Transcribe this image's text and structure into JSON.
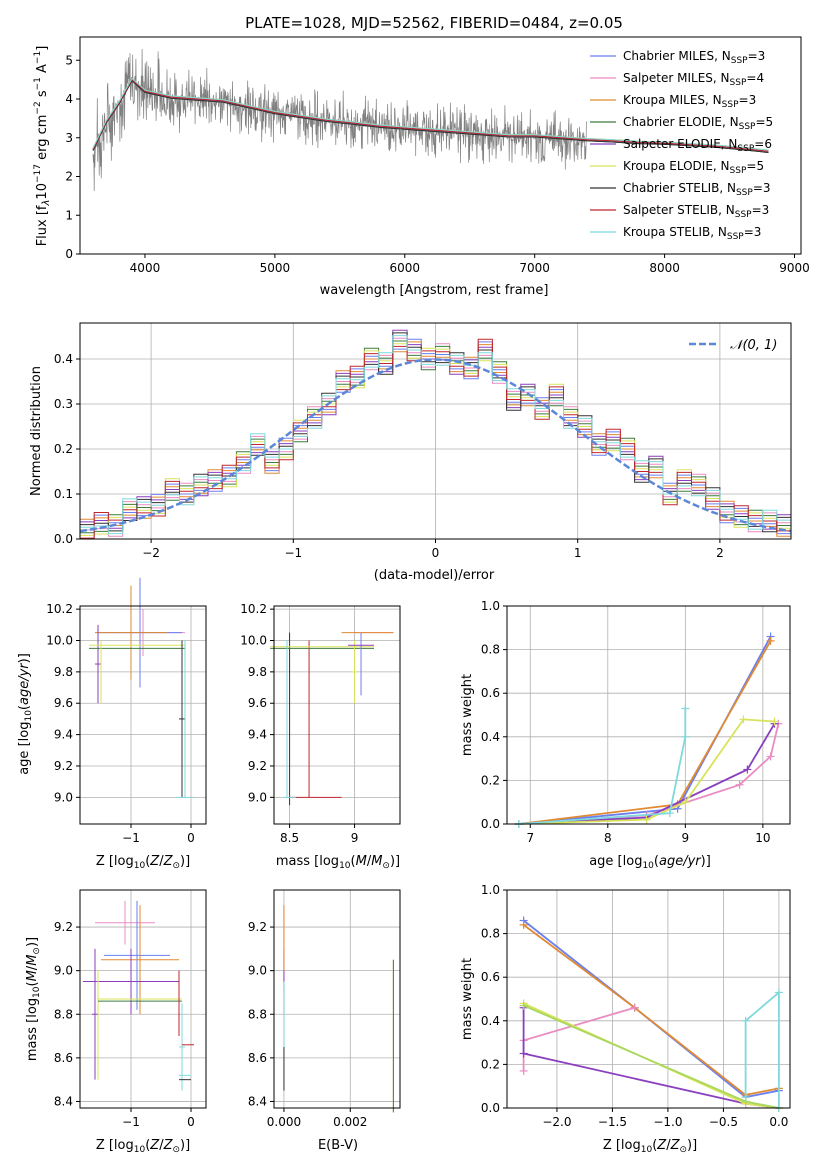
{
  "chart_data": [
    {
      "id": "spectrum",
      "type": "line",
      "title": "PLATE=1028, MJD=52562, FIBERID=0484, z=0.05",
      "xlabel": "wavelength [Angstrom, rest frame]",
      "ylabel": "Flux [f_λ 10^-17 erg cm^-2 s^-1 A^-1]",
      "xlim": [
        3500,
        9050
      ],
      "ylim": [
        0,
        5.6
      ],
      "xticks": [
        4000,
        5000,
        6000,
        7000,
        8000,
        9000
      ],
      "yticks": [
        0,
        1,
        2,
        3,
        4,
        5
      ],
      "legend_position": "top-right",
      "grid": false,
      "data_trace": {
        "color": "#808080",
        "x": [
          3600,
          3700,
          3800,
          3900,
          4000,
          4200,
          4400,
          4600,
          4800,
          5000,
          5200,
          5400,
          5600,
          5800,
          6000,
          6200,
          6400,
          6600,
          6800,
          7000,
          7200,
          7400
        ],
        "y": [
          2.6,
          3.3,
          3.9,
          4.5,
          4.2,
          4.0,
          4.0,
          3.9,
          3.75,
          3.6,
          3.55,
          3.45,
          3.35,
          3.3,
          3.25,
          3.2,
          3.15,
          3.1,
          3.05,
          3.0,
          2.95,
          2.9
        ]
      },
      "model": {
        "x": [
          3600,
          3700,
          3800,
          3900,
          4000,
          4200,
          4400,
          4600,
          4800,
          5000,
          5200,
          5400,
          5600,
          5800,
          6000,
          6200,
          6400,
          6600,
          6800,
          7000,
          7200,
          7400,
          7600,
          7800,
          8000,
          8200,
          8400,
          8600,
          8800
        ],
        "y": [
          2.7,
          3.4,
          3.9,
          4.5,
          4.2,
          4.05,
          4.0,
          3.95,
          3.8,
          3.65,
          3.55,
          3.45,
          3.38,
          3.3,
          3.25,
          3.2,
          3.15,
          3.1,
          3.05,
          3.05,
          3.0,
          2.95,
          2.92,
          2.88,
          2.86,
          2.82,
          2.78,
          2.72,
          2.65
        ]
      },
      "series": [
        {
          "name": "Chabrier MILES, N_SSP=3",
          "color": "#6a7ff0"
        },
        {
          "name": "Salpeter MILES, N_SSP=4",
          "color": "#ea8cc2"
        },
        {
          "name": "Kroupa MILES, N_SSP=3",
          "color": "#e08a33"
        },
        {
          "name": "Chabrier ELODIE, N_SSP=5",
          "color": "#3d7d3d"
        },
        {
          "name": "Salpeter ELODIE, N_SSP=6",
          "color": "#8a3fbf"
        },
        {
          "name": "Kroupa ELODIE, N_SSP=5",
          "color": "#d9e35a"
        },
        {
          "name": "Chabrier STELIB, N_SSP=3",
          "color": "#333333"
        },
        {
          "name": "Salpeter STELIB, N_SSP=3",
          "color": "#c0272d"
        },
        {
          "name": "Kroupa STELIB, N_SSP=3",
          "color": "#7fd8dd"
        }
      ]
    },
    {
      "id": "residuals",
      "type": "histogram",
      "xlabel": "(data-model)/error",
      "ylabel": "Normed distribution",
      "xlim": [
        -2.5,
        2.5
      ],
      "ylim": [
        0,
        0.48
      ],
      "xticks": [
        -2,
        -1,
        0,
        1,
        2
      ],
      "yticks": [
        0.0,
        0.1,
        0.2,
        0.3,
        0.4
      ],
      "grid": true,
      "legend_position": "top-right",
      "normal_label": "𝒩(0, 1)",
      "normal_color": "#5b87d9",
      "bins": [
        -2.5,
        -2.4,
        -2.3,
        -2.2,
        -2.1,
        -2.0,
        -1.9,
        -1.8,
        -1.7,
        -1.6,
        -1.5,
        -1.4,
        -1.3,
        -1.2,
        -1.1,
        -1.0,
        -0.9,
        -0.8,
        -0.7,
        -0.6,
        -0.5,
        -0.4,
        -0.3,
        -0.2,
        -0.1,
        0.0,
        0.1,
        0.2,
        0.3,
        0.4,
        0.5,
        0.6,
        0.7,
        0.8,
        0.9,
        1.0,
        1.1,
        1.2,
        1.3,
        1.4,
        1.5,
        1.6,
        1.7,
        1.8,
        1.9,
        2.0,
        2.1,
        2.2,
        2.3,
        2.4
      ],
      "heights": [
        0.02,
        0.035,
        0.03,
        0.065,
        0.07,
        0.075,
        0.11,
        0.1,
        0.12,
        0.13,
        0.14,
        0.17,
        0.21,
        0.17,
        0.2,
        0.24,
        0.27,
        0.3,
        0.35,
        0.36,
        0.4,
        0.39,
        0.44,
        0.42,
        0.4,
        0.41,
        0.39,
        0.38,
        0.42,
        0.37,
        0.31,
        0.32,
        0.29,
        0.32,
        0.27,
        0.25,
        0.21,
        0.22,
        0.2,
        0.15,
        0.16,
        0.1,
        0.13,
        0.12,
        0.09,
        0.06,
        0.05,
        0.04,
        0.04,
        0.03
      ]
    },
    {
      "id": "age-vs-Z",
      "type": "errorbar",
      "xlabel": "Z [log10(Z/Z⊙)]",
      "ylabel": "age [log10(age/yr)]",
      "xlim": [
        -1.85,
        0.25
      ],
      "ylim": [
        8.83,
        10.22
      ],
      "xticks": [
        -1,
        0
      ],
      "xticklabels": [
        "−1",
        "0"
      ],
      "yticks": [
        9.0,
        9.2,
        9.4,
        9.6,
        9.8,
        10.0,
        10.2
      ],
      "grid": true
    },
    {
      "id": "age-vs-mass",
      "type": "errorbar",
      "xlabel": "mass [log10(M/M⊙)]",
      "ylabel": "",
      "xlim": [
        8.38,
        9.35
      ],
      "ylim": [
        8.83,
        10.22
      ],
      "xticks": [
        8.5,
        9.0
      ],
      "yticks": [
        9.0,
        9.2,
        9.4,
        9.6,
        9.8,
        10.0,
        10.2
      ],
      "grid": true
    },
    {
      "id": "weight-vs-age",
      "type": "line",
      "xlabel": "age [log10(age/yr)]",
      "ylabel": "mass weight",
      "xlim": [
        6.7,
        10.35
      ],
      "ylim": [
        0,
        1.0
      ],
      "xticks": [
        7,
        8,
        9,
        10
      ],
      "yticks": [
        0.0,
        0.2,
        0.4,
        0.6,
        0.8,
        1.0
      ],
      "grid": true,
      "series": [
        {
          "color": "#6a7ff0",
          "x": [
            6.85,
            8.9,
            10.1
          ],
          "y": [
            0.0,
            0.07,
            0.86
          ]
        },
        {
          "color": "#e08a33",
          "x": [
            6.85,
            8.9,
            10.1
          ],
          "y": [
            0.0,
            0.09,
            0.84
          ]
        },
        {
          "color": "#ea8cc2",
          "x": [
            6.85,
            8.5,
            9.7,
            10.1,
            10.2
          ],
          "y": [
            0.0,
            0.04,
            0.18,
            0.31,
            0.46
          ]
        },
        {
          "color": "#8a3fbf",
          "x": [
            6.85,
            8.5,
            9.8,
            10.15
          ],
          "y": [
            0.0,
            0.03,
            0.25,
            0.46
          ]
        },
        {
          "color": "#d9e35a",
          "x": [
            6.85,
            8.5,
            9.0,
            9.75,
            10.15
          ],
          "y": [
            0.0,
            0.02,
            0.1,
            0.48,
            0.47
          ]
        },
        {
          "color": "#7fd8dd",
          "x": [
            6.85,
            8.8,
            9.0,
            9.0
          ],
          "y": [
            0.0,
            0.05,
            0.4,
            0.53
          ]
        }
      ]
    },
    {
      "id": "mass-vs-Z",
      "type": "errorbar",
      "xlabel": "Z [log10(Z/Z⊙)]",
      "ylabel": "mass [log10(M/M⊙)]",
      "xlim": [
        -1.85,
        0.25
      ],
      "ylim": [
        8.37,
        9.37
      ],
      "xticks": [
        -1,
        0
      ],
      "xticklabels": [
        "−1",
        "0"
      ],
      "yticks": [
        8.4,
        8.6,
        8.8,
        9.0,
        9.2
      ],
      "grid": true
    },
    {
      "id": "mass-vs-EBV",
      "type": "errorbar",
      "xlabel": "E(B-V)",
      "ylabel": "",
      "xlim": [
        -0.0003,
        0.0035
      ],
      "ylim": [
        8.37,
        9.37
      ],
      "xticks": [
        0.0,
        0.002
      ],
      "xticklabels": [
        "0.000",
        "0.002"
      ],
      "yticks": [
        8.4,
        8.6,
        8.8,
        9.0,
        9.2
      ],
      "grid": true
    },
    {
      "id": "weight-vs-Z",
      "type": "line",
      "xlabel": "Z [log10(Z/Z⊙)]",
      "ylabel": "mass weight",
      "xlim": [
        -2.45,
        0.1
      ],
      "ylim": [
        0,
        1.0
      ],
      "xticks": [
        -2.0,
        -1.5,
        -1.0,
        -0.5,
        0.0
      ],
      "xticklabels": [
        "−2.0",
        "−1.5",
        "−1.0",
        "−0.5",
        "0.0"
      ],
      "yticks": [
        0.0,
        0.2,
        0.4,
        0.6,
        0.8,
        1.0
      ],
      "grid": true,
      "series": [
        {
          "color": "#6a7ff0",
          "x": [
            -2.3,
            -1.3,
            -0.3,
            0.0
          ],
          "y": [
            0.86,
            0.46,
            0.05,
            0.08
          ]
        },
        {
          "color": "#e08a33",
          "x": [
            -2.3,
            -1.3,
            -0.3,
            0.0
          ],
          "y": [
            0.84,
            0.46,
            0.06,
            0.09
          ]
        },
        {
          "color": "#ea8cc2",
          "x": [
            -2.3,
            -2.3,
            -1.3
          ],
          "y": [
            0.17,
            0.31,
            0.46
          ]
        },
        {
          "color": "#8a3fbf",
          "x": [
            -2.3,
            -2.3,
            -0.3,
            0.0
          ],
          "y": [
            0.46,
            0.25,
            0.02,
            0.0
          ]
        },
        {
          "color": "#d9e35a",
          "x": [
            -2.3,
            -0.3,
            0.0
          ],
          "y": [
            0.48,
            0.02,
            0.0
          ]
        },
        {
          "color": "#a8d85f",
          "x": [
            -2.3,
            -0.3,
            0.0
          ],
          "y": [
            0.47,
            0.03,
            0.0
          ]
        },
        {
          "color": "#7fd8dd",
          "x": [
            -0.3,
            -0.3,
            0.0,
            0.0
          ],
          "y": [
            0.05,
            0.4,
            0.53,
            0.0
          ]
        }
      ]
    }
  ]
}
